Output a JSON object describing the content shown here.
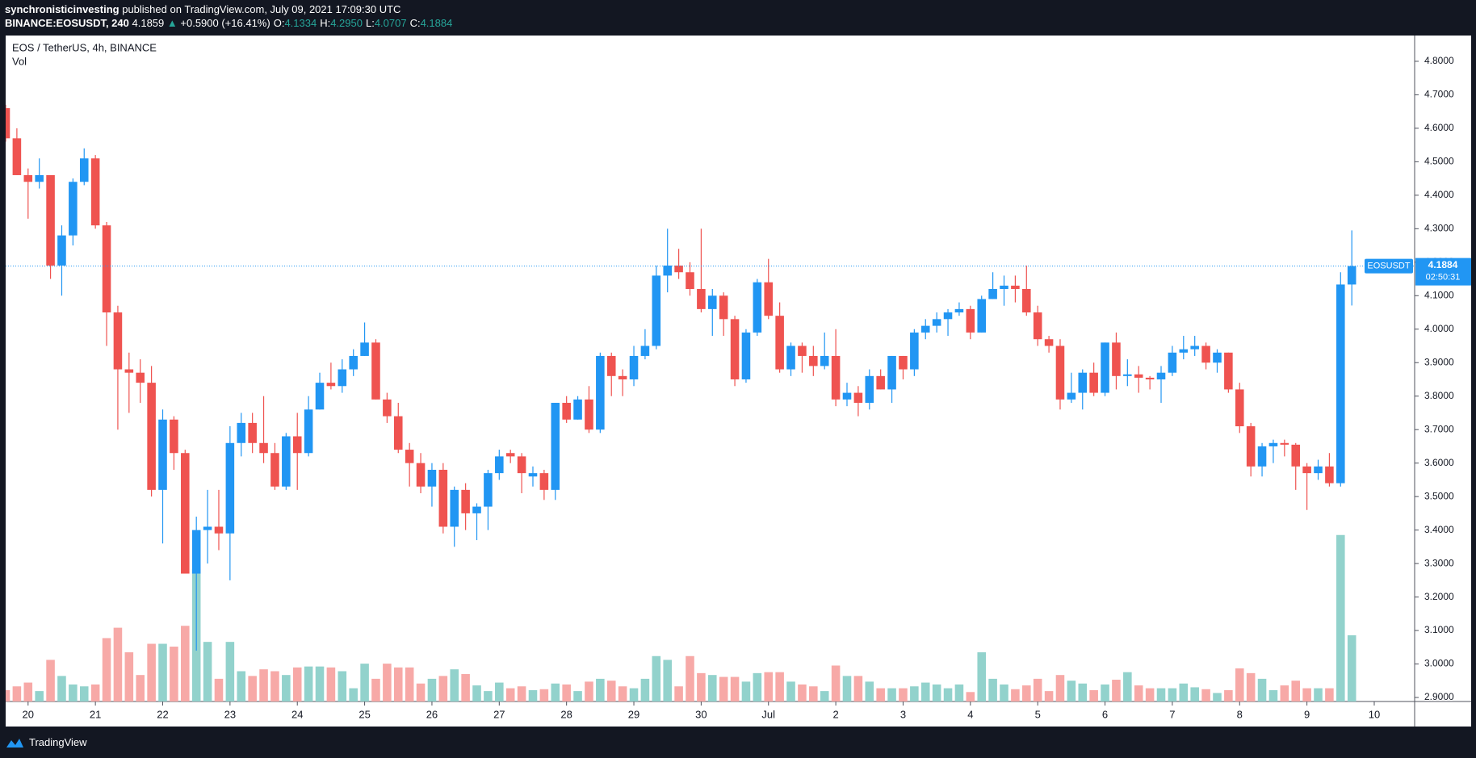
{
  "header": {
    "author": "synchronisticinvesting",
    "published": "published on TradingView.com, July 09, 2021 17:09:30 UTC",
    "symbol": "BINANCE:EOSUSDT, 240",
    "price": "4.1859",
    "arrow": "▲",
    "change": "+0.5900 (+16.41%)",
    "ohlc": [
      {
        "label": "O:",
        "value": "4.1334"
      },
      {
        "label": "H:",
        "value": "4.2950"
      },
      {
        "label": "L:",
        "value": "4.0707"
      },
      {
        "label": "C:",
        "value": "4.1884"
      }
    ]
  },
  "legend": {
    "title": "EOS / TetherUS, 4h, BINANCE",
    "volume": "Vol"
  },
  "footer": {
    "brand": "TradingView"
  },
  "chart_data": {
    "type": "candlestick",
    "up_color": "#2196f3",
    "down_color": "#ef5350",
    "volume_up_color": "#92d2cc",
    "volume_down_color": "#f7a9a7",
    "open": [
      4.66,
      4.57,
      4.46,
      4.44,
      4.46,
      4.19,
      4.28,
      4.44,
      4.51,
      4.31,
      4.05,
      3.88,
      3.87,
      3.84,
      3.52,
      3.73,
      3.63,
      3.27,
      3.4,
      3.41,
      3.39,
      3.66,
      3.72,
      3.66,
      3.63,
      3.53,
      3.68,
      3.63,
      3.76,
      3.84,
      3.83,
      3.88,
      3.92,
      3.96,
      3.79,
      3.74,
      3.64,
      3.6,
      3.53,
      3.58,
      3.41,
      3.52,
      3.45,
      3.47,
      3.57,
      3.63,
      3.62,
      3.56,
      3.57,
      3.52,
      3.78,
      3.73,
      3.79,
      3.7,
      3.92,
      3.86,
      3.85,
      3.92,
      3.95,
      4.16,
      4.19,
      4.17,
      4.12,
      4.06,
      4.1,
      4.03,
      3.85,
      3.99,
      4.14,
      4.04,
      3.88,
      3.95,
      3.92,
      3.89,
      3.92,
      3.79,
      3.81,
      3.78,
      3.86,
      3.82,
      3.92,
      3.88,
      3.99,
      4.01,
      4.03,
      4.05,
      4.06,
      3.99,
      4.09,
      4.12,
      4.13,
      4.12,
      4.05,
      3.97,
      3.95,
      3.79,
      3.81,
      3.87,
      3.81,
      3.96,
      3.86,
      3.865,
      3.855,
      3.85,
      3.87,
      3.93,
      3.94,
      3.95,
      3.9,
      3.93,
      3.82,
      3.71,
      3.59,
      3.65,
      3.66,
      3.655,
      3.59,
      3.57,
      3.59,
      3.54,
      4.1334
    ],
    "high": [
      4.67,
      4.6,
      4.48,
      4.51,
      4.46,
      4.31,
      4.45,
      4.54,
      4.52,
      4.32,
      4.07,
      3.93,
      3.91,
      3.89,
      3.76,
      3.74,
      3.64,
      3.44,
      3.52,
      3.52,
      3.71,
      3.75,
      3.75,
      3.8,
      3.66,
      3.69,
      3.75,
      3.8,
      3.87,
      3.9,
      3.91,
      3.94,
      4.02,
      3.97,
      3.81,
      3.78,
      3.66,
      3.63,
      3.6,
      3.6,
      3.53,
      3.54,
      3.48,
      3.58,
      3.64,
      3.64,
      3.63,
      3.59,
      3.58,
      3.78,
      3.8,
      3.8,
      3.83,
      3.93,
      3.93,
      3.88,
      3.95,
      4.0,
      4.19,
      4.3,
      4.24,
      4.2,
      4.3,
      4.12,
      4.11,
      4.04,
      4.0,
      4.15,
      4.21,
      4.08,
      3.96,
      3.96,
      3.95,
      3.99,
      4.0,
      3.84,
      3.83,
      3.88,
      3.88,
      3.92,
      3.92,
      4.0,
      4.03,
      4.05,
      4.06,
      4.08,
      4.07,
      4.1,
      4.17,
      4.16,
      4.16,
      4.19,
      4.07,
      3.98,
      3.97,
      3.87,
      3.88,
      3.9,
      3.96,
      3.99,
      3.91,
      3.89,
      3.86,
      3.89,
      3.95,
      3.98,
      3.98,
      3.96,
      3.94,
      3.93,
      3.84,
      3.72,
      3.66,
      3.67,
      3.67,
      3.66,
      3.6,
      3.61,
      3.63,
      4.17,
      4.295
    ],
    "low": [
      4.56,
      4.46,
      4.33,
      4.42,
      4.15,
      4.1,
      4.25,
      4.43,
      4.3,
      3.95,
      3.7,
      3.75,
      3.78,
      3.5,
      3.36,
      3.58,
      3.27,
      3.04,
      3.3,
      3.34,
      3.25,
      3.62,
      3.63,
      3.6,
      3.52,
      3.52,
      3.52,
      3.62,
      3.76,
      3.82,
      3.81,
      3.86,
      3.92,
      3.79,
      3.72,
      3.63,
      3.53,
      3.51,
      3.47,
      3.39,
      3.35,
      3.4,
      3.37,
      3.4,
      3.55,
      3.6,
      3.51,
      3.53,
      3.49,
      3.49,
      3.72,
      3.73,
      3.69,
      3.69,
      3.8,
      3.8,
      3.83,
      3.91,
      3.94,
      4.11,
      4.15,
      4.1,
      4.05,
      3.98,
      3.98,
      3.83,
      3.84,
      3.98,
      4.03,
      3.87,
      3.86,
      3.87,
      3.86,
      3.88,
      3.77,
      3.77,
      3.74,
      3.76,
      3.82,
      3.78,
      3.85,
      3.86,
      3.97,
      3.99,
      3.98,
      4.04,
      3.97,
      3.99,
      4.09,
      4.07,
      4.08,
      4.04,
      3.95,
      3.93,
      3.76,
      3.78,
      3.76,
      3.8,
      3.8,
      3.82,
      3.83,
      3.81,
      3.82,
      3.78,
      3.86,
      3.91,
      3.92,
      3.88,
      3.87,
      3.81,
      3.69,
      3.56,
      3.56,
      3.6,
      3.62,
      3.52,
      3.46,
      3.55,
      3.53,
      3.53,
      4.0707
    ],
    "close": [
      4.57,
      4.46,
      4.44,
      4.46,
      4.19,
      4.28,
      4.44,
      4.51,
      4.31,
      4.05,
      3.88,
      3.87,
      3.84,
      3.52,
      3.73,
      3.63,
      3.27,
      3.4,
      3.41,
      3.39,
      3.66,
      3.72,
      3.66,
      3.63,
      3.53,
      3.68,
      3.63,
      3.76,
      3.84,
      3.83,
      3.88,
      3.92,
      3.96,
      3.79,
      3.74,
      3.64,
      3.6,
      3.53,
      3.58,
      3.41,
      3.52,
      3.45,
      3.47,
      3.57,
      3.62,
      3.62,
      3.57,
      3.57,
      3.52,
      3.78,
      3.73,
      3.79,
      3.7,
      3.92,
      3.86,
      3.85,
      3.92,
      3.95,
      4.16,
      4.19,
      4.17,
      4.12,
      4.06,
      4.1,
      4.03,
      3.85,
      3.99,
      4.14,
      4.04,
      3.88,
      3.95,
      3.92,
      3.89,
      3.92,
      3.79,
      3.81,
      3.78,
      3.86,
      3.82,
      3.92,
      3.88,
      3.99,
      4.01,
      4.03,
      4.05,
      4.06,
      3.99,
      4.09,
      4.12,
      4.13,
      4.12,
      4.05,
      3.97,
      3.95,
      3.79,
      3.81,
      3.87,
      3.81,
      3.96,
      3.86,
      3.865,
      3.855,
      3.85,
      3.87,
      3.93,
      3.94,
      3.95,
      3.9,
      3.93,
      3.82,
      3.71,
      3.59,
      3.65,
      3.66,
      3.655,
      3.59,
      3.57,
      3.59,
      3.54,
      4.1334,
      4.1884
    ],
    "volume": [
      12,
      16,
      20,
      11,
      44,
      27,
      18,
      16,
      18,
      67,
      78,
      52,
      28,
      61,
      61,
      58,
      80,
      140,
      63,
      24,
      63,
      32,
      27,
      34,
      32,
      28,
      36,
      37,
      37,
      36,
      32,
      14,
      40,
      24,
      40,
      36,
      36,
      19,
      24,
      27,
      34,
      29,
      17,
      11,
      20,
      14,
      16,
      12,
      13,
      19,
      18,
      11,
      21,
      24,
      22,
      16,
      14,
      24,
      48,
      44,
      16,
      48,
      30,
      28,
      26,
      26,
      21,
      30,
      31,
      31,
      21,
      18,
      16,
      11,
      38,
      27,
      27,
      21,
      14,
      14,
      14,
      16,
      20,
      18,
      14,
      18,
      10,
      52,
      24,
      18,
      13,
      17,
      24,
      11,
      28,
      22,
      19,
      12,
      18,
      23,
      31,
      17,
      14,
      14,
      14,
      19,
      15,
      13,
      9,
      12,
      35,
      30,
      24,
      12,
      17,
      22,
      14,
      14,
      14,
      176,
      70
    ],
    "xlim": [
      0,
      125.6
    ],
    "xticks": [
      {
        "value": 2,
        "label": "20"
      },
      {
        "value": 8,
        "label": "21"
      },
      {
        "value": 14,
        "label": "22"
      },
      {
        "value": 20,
        "label": "23"
      },
      {
        "value": 26,
        "label": "24"
      },
      {
        "value": 32,
        "label": "25"
      },
      {
        "value": 38,
        "label": "26"
      },
      {
        "value": 44,
        "label": "27"
      },
      {
        "value": 50,
        "label": "28"
      },
      {
        "value": 56,
        "label": "29"
      },
      {
        "value": 62,
        "label": "30"
      },
      {
        "value": 68,
        "label": "Jul"
      },
      {
        "value": 74,
        "label": "2"
      },
      {
        "value": 80,
        "label": "3"
      },
      {
        "value": 86,
        "label": "4"
      },
      {
        "value": 92,
        "label": "5"
      },
      {
        "value": 98,
        "label": "6"
      },
      {
        "value": 104,
        "label": "7"
      },
      {
        "value": 110,
        "label": "8"
      },
      {
        "value": 116,
        "label": "9"
      },
      {
        "value": 122,
        "label": "10"
      }
    ],
    "ylim": [
      2.888,
      4.877
    ],
    "yticks": [
      {
        "value": 2.9,
        "label": "2.9000"
      },
      {
        "value": 3.0,
        "label": "3.0000"
      },
      {
        "value": 3.1,
        "label": "3.1000"
      },
      {
        "value": 3.2,
        "label": "3.2000"
      },
      {
        "value": 3.3,
        "label": "3.3000"
      },
      {
        "value": 3.4,
        "label": "3.4000"
      },
      {
        "value": 3.5,
        "label": "3.5000"
      },
      {
        "value": 3.6,
        "label": "3.6000"
      },
      {
        "value": 3.7,
        "label": "3.7000"
      },
      {
        "value": 3.8,
        "label": "3.8000"
      },
      {
        "value": 3.9,
        "label": "3.9000"
      },
      {
        "value": 4.0,
        "label": "4.0000"
      },
      {
        "value": 4.1,
        "label": "4.1000"
      },
      {
        "value": 4.2,
        "label": "4.2000"
      },
      {
        "value": 4.3,
        "label": "4.3000"
      },
      {
        "value": 4.4,
        "label": "4.4000"
      },
      {
        "value": 4.5,
        "label": "4.5000"
      },
      {
        "value": 4.6,
        "label": "4.6000"
      },
      {
        "value": 4.7,
        "label": "4.7000"
      },
      {
        "value": 4.8,
        "label": "4.8000"
      }
    ],
    "symbol_tag": "EOSUSDT",
    "last_price": {
      "value": 4.1884,
      "label": "4.1884"
    },
    "countdown": "02:50:31"
  }
}
